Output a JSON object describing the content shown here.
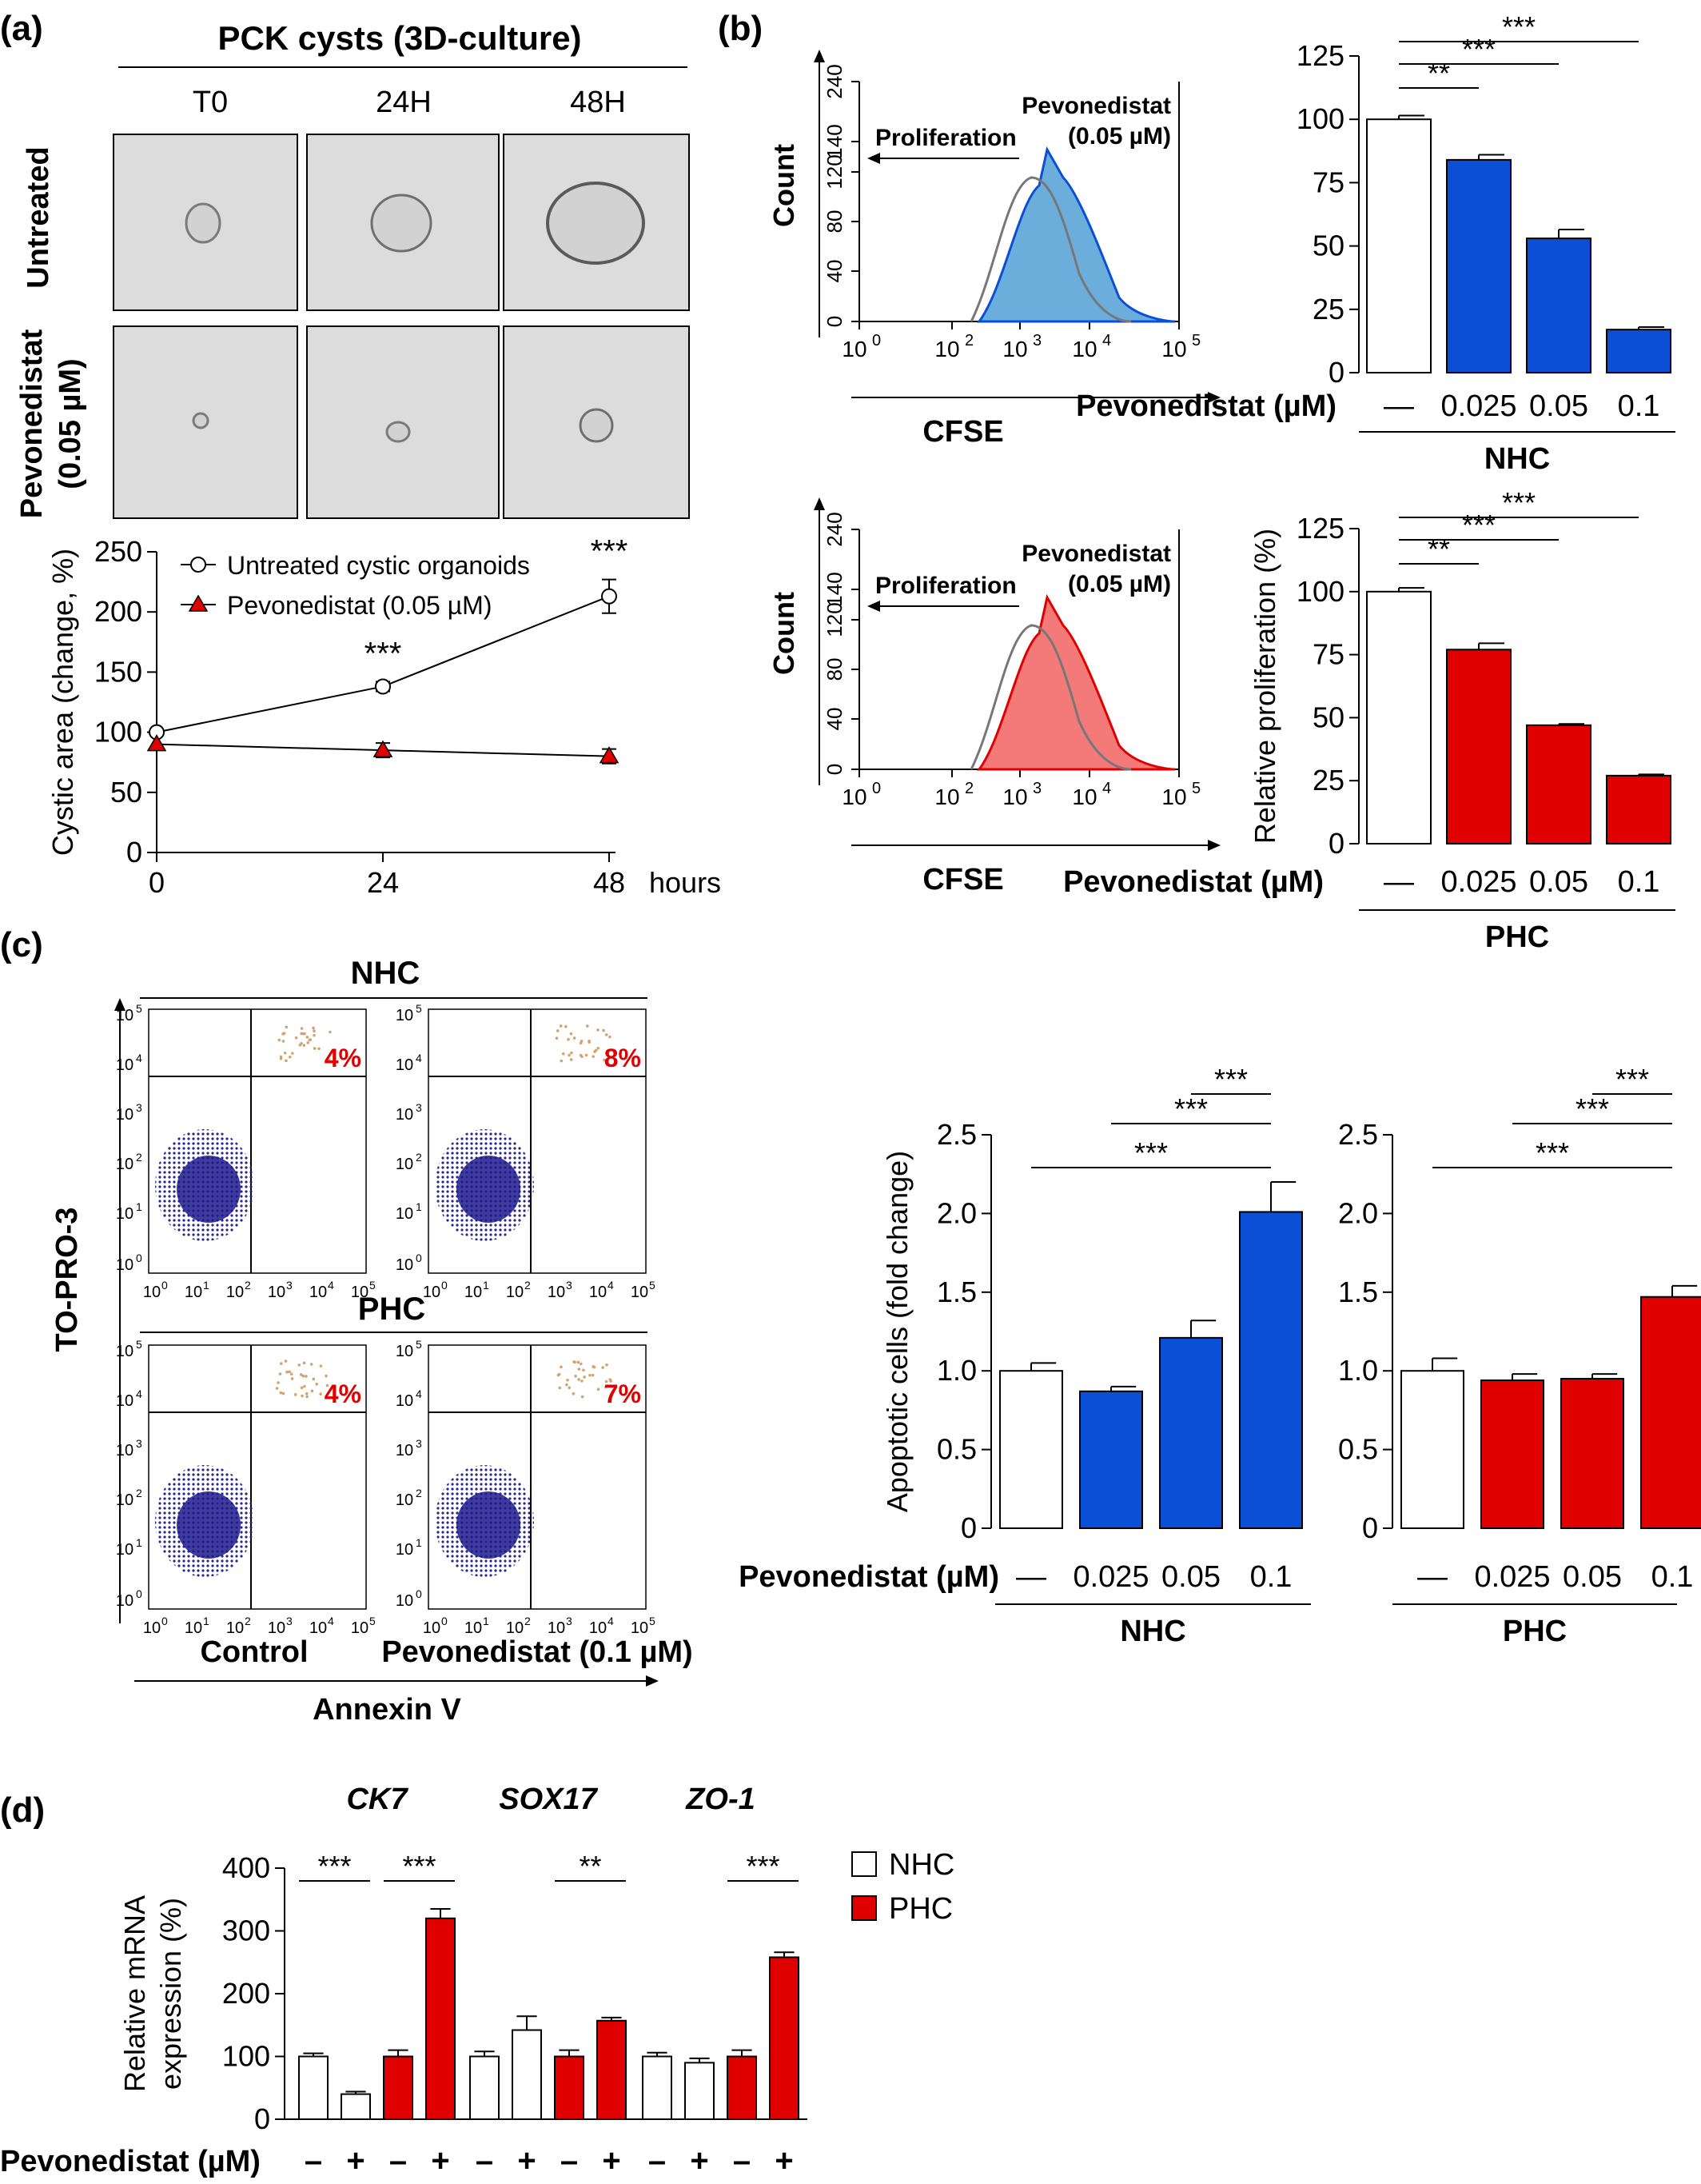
{
  "panels": {
    "a": {
      "label": "(a)",
      "header": "PCK cysts (3D-culture)",
      "times": [
        "T0",
        "24H",
        "48H"
      ],
      "row_labels": [
        "Untreated",
        "Pevonedistat",
        "(0.05 µM)"
      ]
    },
    "b": {
      "label": "(b)",
      "hist_ylabel": "Count",
      "hist_xlabel": "CFSE",
      "hist_arrow_label": "Proliferation",
      "hist_drug_line1": "Pevonedistat",
      "hist_drug_line2": "(0.05 µM)",
      "hist_yticks": [
        "240",
        "140",
        "120",
        "80",
        "40",
        "0"
      ],
      "hist_xticks": [
        "10",
        "10",
        "10",
        "10",
        "10"
      ],
      "hist_xexp": [
        "0",
        "2",
        "3",
        "4",
        "5"
      ],
      "nhc_color": "#0b4fd6",
      "nhc_fill": "#6baedc",
      "phc_color": "#e00000",
      "phc_fill": "#f47a7a"
    },
    "c": {
      "label": "(c)",
      "ylabel": "TO-PRO-3",
      "xlabel": "Annexin V",
      "groups": [
        "NHC",
        "PHC"
      ],
      "col_labels": [
        "Control",
        "Pevonedistat (0.1 µM)"
      ],
      "percents": [
        "4%",
        "8%",
        "4%",
        "7%"
      ],
      "axis_base": "10",
      "axis_exps": [
        "0",
        "1",
        "2",
        "3",
        "4",
        "5"
      ],
      "dot_color": "#1e1a8c",
      "gate_color": "#d4a26e"
    },
    "d": {
      "label": "(d)"
    }
  },
  "chart_data": [
    {
      "id": "a-line",
      "type": "line",
      "ylabel": "Cystic area (change, %)",
      "xlabel": "hours",
      "x": [
        0,
        24,
        48
      ],
      "xticks": [
        "0",
        "24",
        "48"
      ],
      "ylim": [
        0,
        250
      ],
      "yticks": [
        0,
        50,
        100,
        150,
        200,
        250
      ],
      "series": [
        {
          "name": "Untreated cystic organoids",
          "values": [
            100,
            138,
            213
          ],
          "errors": [
            0,
            4,
            14
          ],
          "marker": "open-circle",
          "color": "#000000"
        },
        {
          "name": "Pevonedistat (0.05 µM)",
          "values": [
            90,
            85,
            80
          ],
          "errors": [
            0,
            6,
            6
          ],
          "marker": "triangle",
          "color": "#e00000"
        }
      ],
      "annotations": [
        {
          "x": 24,
          "text": "***"
        },
        {
          "x": 48,
          "text": "***"
        }
      ]
    },
    {
      "id": "b-nhc",
      "type": "bar",
      "ylabel": "",
      "ylim": [
        0,
        125
      ],
      "yticks": [
        0,
        25,
        50,
        75,
        100,
        125
      ],
      "xlabel": "Pevonedistat (µM)",
      "categories": [
        "—",
        "0.025",
        "0.05",
        "0.1"
      ],
      "values": [
        100,
        84,
        53,
        17
      ],
      "errors": [
        1.5,
        2,
        3.5,
        1
      ],
      "colors": [
        "#ffffff",
        "#0b4fd6",
        "#0b4fd6",
        "#0b4fd6"
      ],
      "group": "NHC",
      "significance": [
        {
          "from": 0,
          "to": 1,
          "text": "**"
        },
        {
          "from": 0,
          "to": 2,
          "text": "***"
        },
        {
          "from": 0,
          "to": 3,
          "text": "***"
        }
      ]
    },
    {
      "id": "b-phc",
      "type": "bar",
      "ylabel": "Relative proliferation (%)",
      "ylim": [
        0,
        125
      ],
      "yticks": [
        0,
        25,
        50,
        75,
        100,
        125
      ],
      "xlabel": "Pevonedistat (µM)",
      "categories": [
        "—",
        "0.025",
        "0.05",
        "0.1"
      ],
      "values": [
        100,
        77,
        47,
        27
      ],
      "errors": [
        1.5,
        2.5,
        0.5,
        0.5
      ],
      "colors": [
        "#ffffff",
        "#e00000",
        "#e00000",
        "#e00000"
      ],
      "group": "PHC",
      "significance": [
        {
          "from": 0,
          "to": 1,
          "text": "**"
        },
        {
          "from": 0,
          "to": 2,
          "text": "***"
        },
        {
          "from": 0,
          "to": 3,
          "text": "***"
        }
      ]
    },
    {
      "id": "c-nhc",
      "type": "bar",
      "ylabel": "Apoptotic cells (fold change)",
      "ylim": [
        0,
        2.5
      ],
      "yticks": [
        "0",
        "0.5",
        "1.0",
        "1.5",
        "2.0",
        "2.5"
      ],
      "xlabel": "Pevonedistat (µM)",
      "categories": [
        "—",
        "0.025",
        "0.05",
        "0.1"
      ],
      "values": [
        1.0,
        0.87,
        1.21,
        2.01
      ],
      "errors": [
        0.05,
        0.03,
        0.11,
        0.19
      ],
      "colors": [
        "#ffffff",
        "#0b4fd6",
        "#0b4fd6",
        "#0b4fd6"
      ],
      "group": "NHC",
      "significance": [
        {
          "from": 0,
          "to": 3,
          "text": "***"
        },
        {
          "from": 1,
          "to": 3,
          "text": "***"
        },
        {
          "from": 2,
          "to": 3,
          "text": "***"
        }
      ]
    },
    {
      "id": "c-phc",
      "type": "bar",
      "ylabel": "",
      "ylim": [
        0,
        2.5
      ],
      "yticks": [
        "0",
        "0.5",
        "1.0",
        "1.5",
        "2.0",
        "2.5"
      ],
      "xlabel": "",
      "categories": [
        "—",
        "0.025",
        "0.05",
        "0.1"
      ],
      "values": [
        1.0,
        0.94,
        0.95,
        1.47
      ],
      "errors": [
        0.08,
        0.04,
        0.03,
        0.07
      ],
      "colors": [
        "#ffffff",
        "#e00000",
        "#e00000",
        "#e00000"
      ],
      "group": "PHC",
      "significance": [
        {
          "from": 0,
          "to": 3,
          "text": "***"
        },
        {
          "from": 1,
          "to": 3,
          "text": "***"
        },
        {
          "from": 2,
          "to": 3,
          "text": "***"
        }
      ]
    },
    {
      "id": "d-mrna",
      "type": "bar",
      "ylabel": "Relative mRNA expression (%)",
      "ylim": [
        0,
        400
      ],
      "yticks": [
        0,
        100,
        200,
        300,
        400
      ],
      "xlabel": "Pevonedistat (µM)",
      "genes": [
        "CK7",
        "SOX17",
        "ZO-1"
      ],
      "treatment_labels": [
        "–",
        "+",
        "–",
        "+"
      ],
      "legend": [
        {
          "name": "NHC",
          "color": "#ffffff"
        },
        {
          "name": "PHC",
          "color": "#e00000"
        }
      ],
      "series_by_gene": [
        {
          "gene": "CK7",
          "values": [
            100,
            40,
            100,
            320
          ],
          "errors": [
            5,
            4,
            10,
            15
          ],
          "sig": [
            {
              "from": 0,
              "to": 1,
              "text": "***"
            },
            {
              "from": 2,
              "to": 3,
              "text": "***"
            }
          ]
        },
        {
          "gene": "SOX17",
          "values": [
            100,
            142,
            100,
            157
          ],
          "errors": [
            8,
            22,
            10,
            5
          ],
          "sig": [
            {
              "from": 2,
              "to": 3,
              "text": "**"
            }
          ]
        },
        {
          "gene": "ZO-1",
          "values": [
            100,
            90,
            100,
            258
          ],
          "errors": [
            6,
            7,
            10,
            8
          ],
          "sig": [
            {
              "from": 2,
              "to": 3,
              "text": "***"
            }
          ]
        }
      ]
    }
  ]
}
